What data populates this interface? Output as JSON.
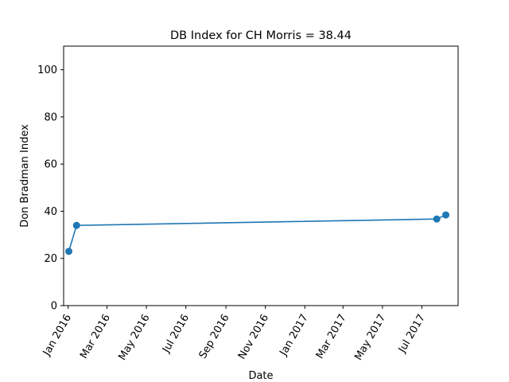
{
  "chart_data": {
    "type": "line",
    "title": "DB Index for CH Morris = 38.44",
    "xlabel": "Date",
    "ylabel": "Don Bradman Index",
    "xlim": [
      "2015-12-25",
      "2017-08-26"
    ],
    "ylim": [
      0,
      110
    ],
    "x_ticks": [
      {
        "date": "2016-01-01",
        "label": "Jan 2016"
      },
      {
        "date": "2016-03-01",
        "label": "Mar 2016"
      },
      {
        "date": "2016-05-01",
        "label": "May 2016"
      },
      {
        "date": "2016-07-01",
        "label": "Jul 2016"
      },
      {
        "date": "2016-09-01",
        "label": "Sep 2016"
      },
      {
        "date": "2016-11-01",
        "label": "Nov 2016"
      },
      {
        "date": "2017-01-01",
        "label": "Jan 2017"
      },
      {
        "date": "2017-03-01",
        "label": "Mar 2017"
      },
      {
        "date": "2017-05-01",
        "label": "May 2017"
      },
      {
        "date": "2017-07-01",
        "label": "Jul 2017"
      }
    ],
    "y_ticks": [
      0,
      20,
      40,
      60,
      80,
      100
    ],
    "series": [
      {
        "color": "#1f77b4",
        "points": [
          {
            "x": "2016-01-02",
            "y": 23.0
          },
          {
            "x": "2016-01-14",
            "y": 34.0
          },
          {
            "x": "2017-07-24",
            "y": 36.7
          },
          {
            "x": "2017-08-07",
            "y": 38.44
          }
        ]
      }
    ],
    "grid": false,
    "legend": "none"
  }
}
